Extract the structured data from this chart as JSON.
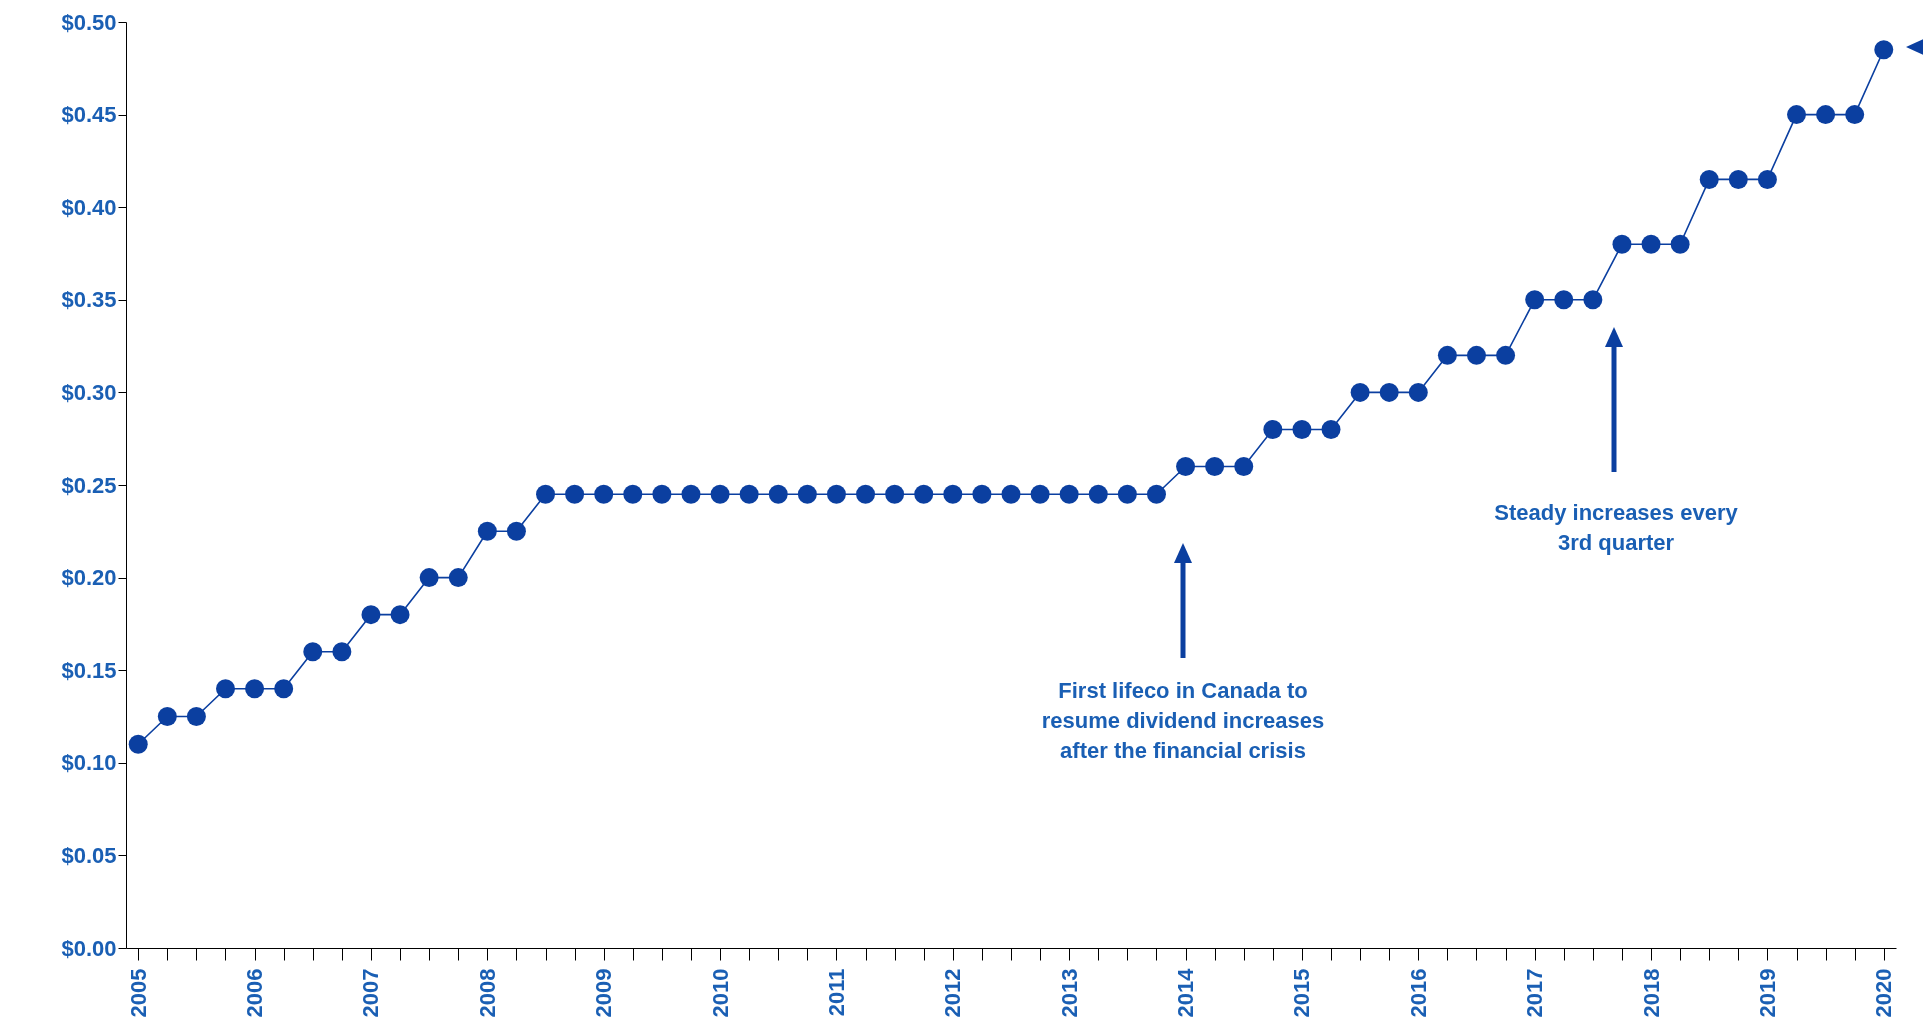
{
  "chart_data": {
    "type": "line",
    "categories": [
      "2005",
      null,
      null,
      null,
      "2006",
      null,
      null,
      null,
      "2007",
      null,
      null,
      null,
      "2008",
      null,
      null,
      null,
      "2009",
      null,
      null,
      null,
      "2010",
      null,
      null,
      null,
      "2011",
      null,
      null,
      null,
      "2012",
      null,
      null,
      null,
      "2013",
      null,
      null,
      null,
      "2014",
      null,
      null,
      null,
      "2015",
      null,
      null,
      null,
      "2016",
      null,
      null,
      null,
      "2017",
      null,
      null,
      null,
      "2018",
      null,
      null,
      null,
      "2019",
      null,
      null,
      null,
      "2020"
    ],
    "series": [
      {
        "color": "#0b3fa0",
        "values": [
          0.11,
          0.125,
          0.125,
          0.14,
          0.14,
          0.14,
          0.16,
          0.16,
          0.18,
          0.18,
          0.2,
          0.2,
          0.225,
          0.225,
          0.245,
          0.245,
          0.245,
          0.245,
          0.245,
          0.245,
          0.245,
          0.245,
          0.245,
          0.245,
          0.245,
          0.245,
          0.245,
          0.245,
          0.245,
          0.245,
          0.245,
          0.245,
          0.245,
          0.245,
          0.245,
          0.245,
          0.26,
          0.26,
          0.26,
          0.28,
          0.28,
          0.28,
          0.3,
          0.3,
          0.3,
          0.32,
          0.32,
          0.32,
          0.35,
          0.35,
          0.35,
          0.38,
          0.38,
          0.38,
          0.415,
          0.415,
          0.415,
          0.45,
          0.45,
          0.45,
          0.485
        ]
      }
    ],
    "ylim": [
      0,
      0.5
    ],
    "yticks": [
      {
        "value": 0,
        "label": "$0.00"
      },
      {
        "value": 0.05,
        "label": "$0.05"
      },
      {
        "value": 0.1,
        "label": "$0.10"
      },
      {
        "value": 0.15,
        "label": "$0.15"
      },
      {
        "value": 0.2,
        "label": "$0.20"
      },
      {
        "value": 0.25,
        "label": "$0.25"
      },
      {
        "value": 0.3,
        "label": "$0.30"
      },
      {
        "value": 0.35,
        "label": "$0.35"
      },
      {
        "value": 0.4,
        "label": "$0.40"
      },
      {
        "value": 0.45,
        "label": "$0.45"
      },
      {
        "value": 0.5,
        "label": "$0.50"
      }
    ],
    "marker": "circle",
    "line_style": "solid",
    "grid": false,
    "legend": false,
    "annotations": [
      "First lifeco in Canada to resume dividend increases after the financial crisis",
      "Steady increases every 3rd quarter"
    ]
  }
}
